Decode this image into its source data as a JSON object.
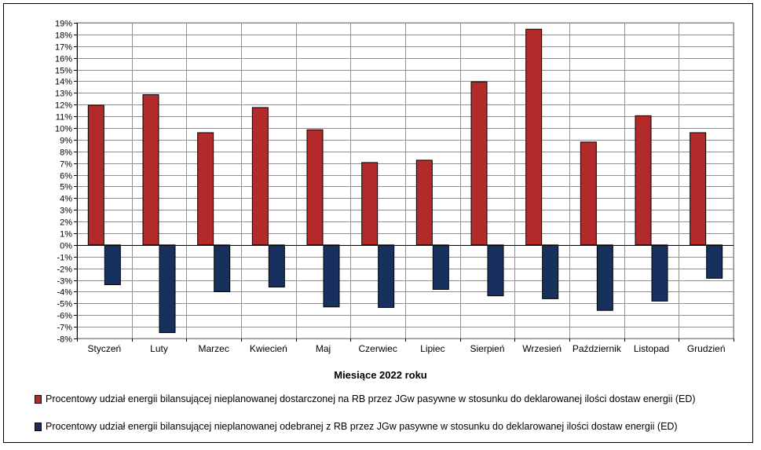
{
  "chart_data": {
    "type": "bar",
    "categories": [
      "Styczeń",
      "Luty",
      "Marzec",
      "Kwiecień",
      "Maj",
      "Czerwiec",
      "Lipiec",
      "Sierpień",
      "Wrzesień",
      "Październik",
      "Listopad",
      "Grudzień"
    ],
    "series": [
      {
        "name": "Procentowy udział energii bilansującej nieplanowanej dostarczonej na RB przez JGw pasywne w stosunku do deklarowanej ilości dostaw energii (ED)",
        "color": "#B22A2A",
        "values": [
          11.95,
          12.85,
          9.6,
          11.75,
          9.85,
          7.05,
          7.25,
          13.95,
          18.45,
          8.8,
          11.05,
          9.6
        ]
      },
      {
        "name": "Procentowy udział energii bilansującej nieplanowanej odebranej z RB przez JGw pasywne w stosunku do deklarowanej ilości dostaw energii (ED)",
        "color": "#17305E",
        "values": [
          -3.4,
          -7.5,
          -4.0,
          -3.6,
          -5.3,
          -5.35,
          -3.8,
          -4.35,
          -4.6,
          -5.6,
          -4.8,
          -2.85
        ]
      }
    ],
    "xlabel": "Miesiące 2022  roku",
    "ylabel": "",
    "ylim": [
      -8,
      19
    ],
    "ytick_step": 1,
    "ytick_format": "percent",
    "grid": true,
    "legend_position": "bottom"
  }
}
